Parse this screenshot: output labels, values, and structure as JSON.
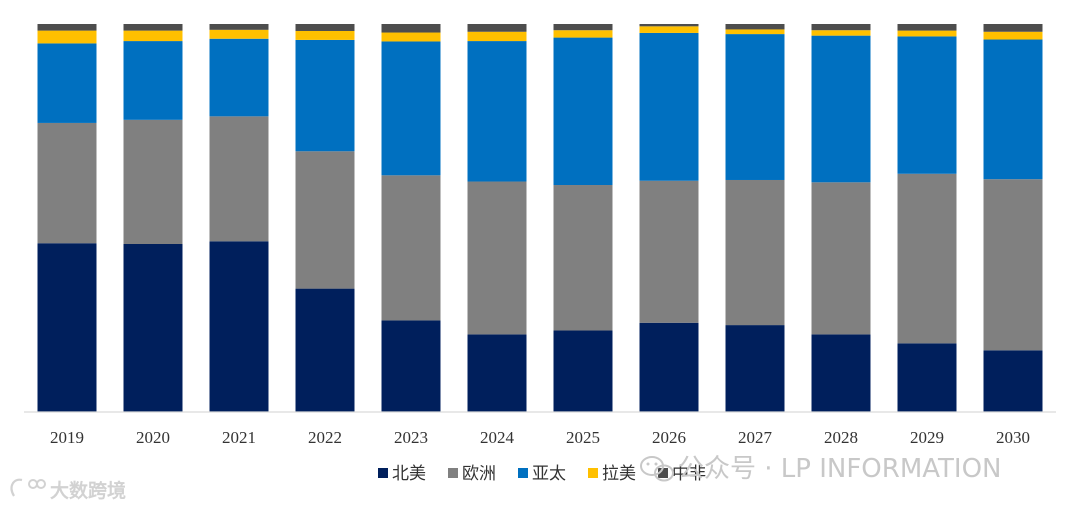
{
  "chart_data": {
    "type": "bar",
    "stacked": true,
    "normalized": true,
    "categories": [
      "2019",
      "2020",
      "2021",
      "2022",
      "2023",
      "2024",
      "2025",
      "2026",
      "2027",
      "2028",
      "2029",
      "2030"
    ],
    "ylim": [
      0,
      100
    ],
    "grid": false,
    "legend_position": "bottom",
    "series": [
      {
        "name": "北美",
        "color": "#001f5c",
        "values": [
          43.5,
          43.3,
          44.0,
          31.8,
          23.6,
          20.0,
          21.0,
          23.0,
          22.4,
          20.0,
          17.7,
          15.9
        ]
      },
      {
        "name": "欧洲",
        "color": "#808080",
        "values": [
          31.0,
          32.0,
          32.2,
          35.4,
          37.4,
          39.4,
          37.5,
          36.6,
          37.4,
          39.2,
          43.7,
          44.1
        ]
      },
      {
        "name": "亚太",
        "color": "#0070c0",
        "values": [
          20.5,
          20.3,
          20.0,
          28.7,
          34.5,
          36.2,
          38.0,
          38.1,
          37.6,
          37.8,
          35.4,
          36.0
        ]
      },
      {
        "name": "拉美",
        "color": "#ffc000",
        "values": [
          3.3,
          2.7,
          2.3,
          2.3,
          2.3,
          2.4,
          1.9,
          1.7,
          1.2,
          1.4,
          1.5,
          2.0
        ]
      },
      {
        "name": "中非",
        "color": "#4d4d4d",
        "values": [
          1.7,
          1.7,
          1.5,
          1.8,
          2.2,
          2.0,
          1.6,
          0.6,
          1.4,
          1.6,
          1.7,
          2.0
        ]
      }
    ]
  },
  "watermarks": {
    "main": "公众号 · LP INFORMATION",
    "corner": "大数跨境"
  }
}
